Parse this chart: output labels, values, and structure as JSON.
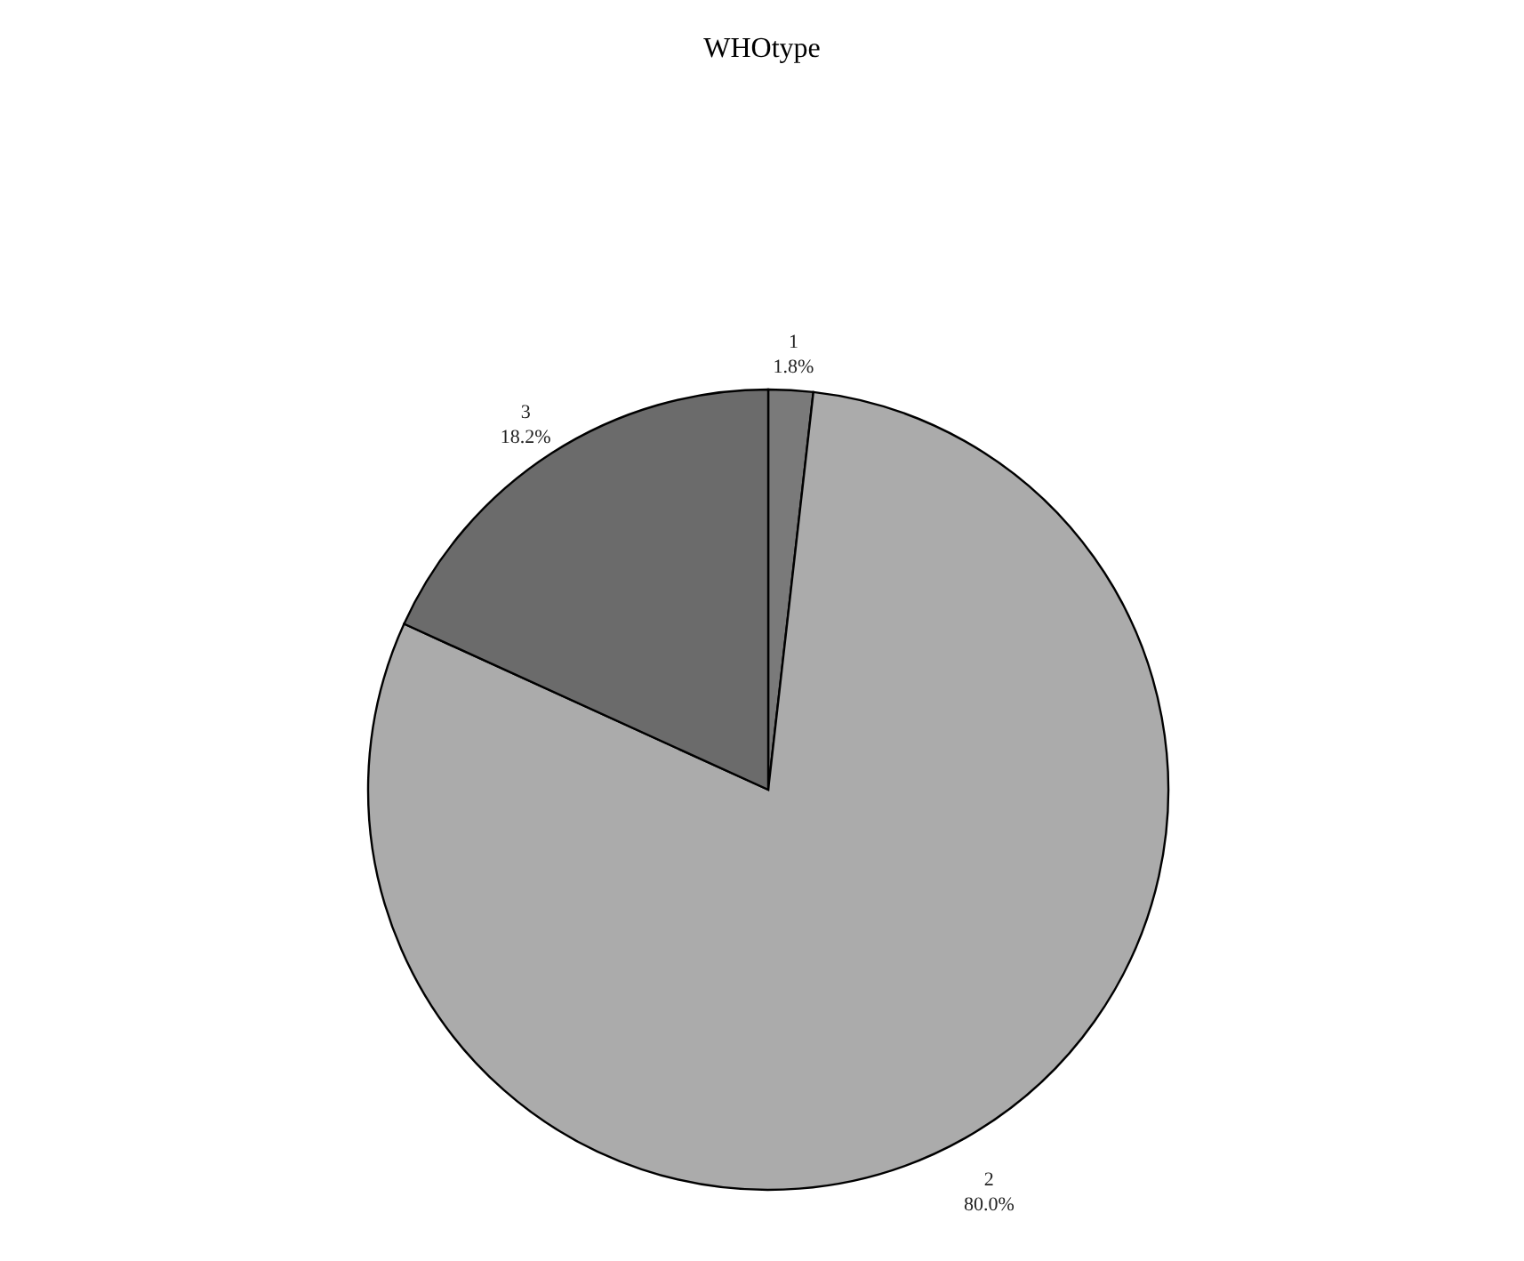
{
  "chart_data": {
    "type": "pie",
    "title": "WHOtype",
    "categories": [
      "1",
      "2",
      "3"
    ],
    "values": [
      1.8,
      80.0,
      18.2
    ],
    "value_labels": [
      "1.8%",
      "80.0%",
      "18.2%"
    ],
    "colors": [
      "#7a7a7a",
      "#ababab",
      "#6b6b6b"
    ],
    "legend": false
  }
}
